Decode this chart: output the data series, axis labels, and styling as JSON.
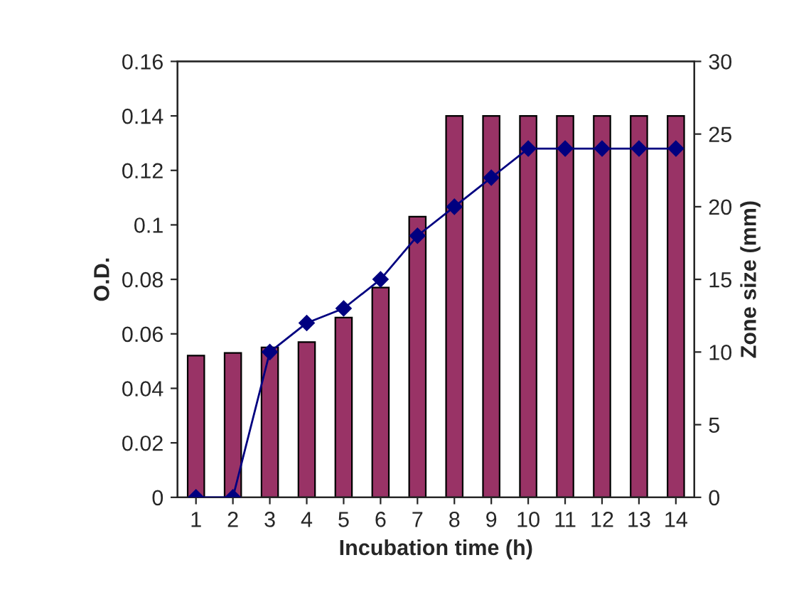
{
  "chart_data": {
    "type": "bar",
    "xlabel": "Incubation time (h)",
    "ylabel": "O.D.",
    "y2label": "Zone size (mm)",
    "categories": [
      "1",
      "2",
      "3",
      "4",
      "5",
      "6",
      "7",
      "8",
      "9",
      "10",
      "11",
      "12",
      "13",
      "14"
    ],
    "series": [
      {
        "color": "#993366",
        "values": [
          0.052,
          0.053,
          0.055,
          0.057,
          0.066,
          0.077,
          0.103,
          0.14,
          0.14,
          0.14,
          0.14,
          0.14,
          0.14,
          0.14
        ]
      },
      {
        "type": "line",
        "axis": "y2",
        "color": "#000080",
        "marker": "diamond",
        "values": [
          0,
          0,
          10,
          12,
          13,
          15,
          18,
          20,
          22,
          24,
          24,
          24,
          24,
          24
        ]
      }
    ],
    "ylim": [
      0,
      0.16
    ],
    "yticks": [
      {
        "value": 0,
        "label": "0"
      },
      0.02,
      0.04,
      0.06,
      0.08,
      {
        "value": 0.1,
        "label": "0.1"
      },
      0.12,
      0.14,
      0.16
    ],
    "y2lim": [
      0,
      30
    ],
    "y2ticks": [
      0,
      5,
      10,
      15,
      20,
      25,
      30
    ],
    "grid": false,
    "legend": false
  }
}
